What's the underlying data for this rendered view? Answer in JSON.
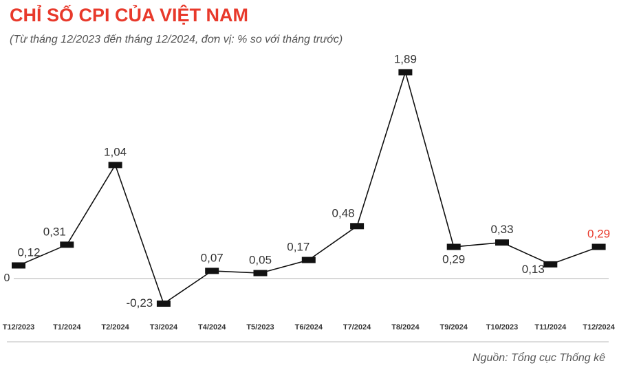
{
  "chart_data": {
    "type": "line",
    "title": "CHỈ SỐ CPI CỦA VIỆT NAM",
    "subtitle": "(Từ tháng 12/2023 đến tháng 12/2024, đơn vị: % so với tháng trước)",
    "source": "Nguồn: Tổng cục Thống kê",
    "categories": [
      "T12/2023",
      "T1/2024",
      "T2/2024",
      "T3/2024",
      "T4/2024",
      "T5/2023",
      "T6/2024",
      "T7/2024",
      "T8/2024",
      "T9/2024",
      "T10/2023",
      "T11/2024",
      "T12/2024"
    ],
    "values": [
      0.12,
      0.31,
      1.04,
      -0.23,
      0.07,
      0.05,
      0.17,
      0.48,
      1.89,
      0.29,
      0.33,
      0.13,
      0.29
    ],
    "value_labels": [
      "0,12",
      "0,31",
      "1,04",
      "-0,23",
      "0,07",
      "0,05",
      "0,17",
      "0,48",
      "1,89",
      "0,29",
      "0,33",
      "0,13",
      "0,29"
    ],
    "label_colors": [
      "#333333",
      "#333333",
      "#333333",
      "#333333",
      "#333333",
      "#333333",
      "#333333",
      "#333333",
      "#333333",
      "#333333",
      "#333333",
      "#333333",
      "#e8392b"
    ],
    "color": "#111111",
    "ylim": [
      -0.4,
      2.05
    ],
    "yticks": [
      0
    ]
  }
}
